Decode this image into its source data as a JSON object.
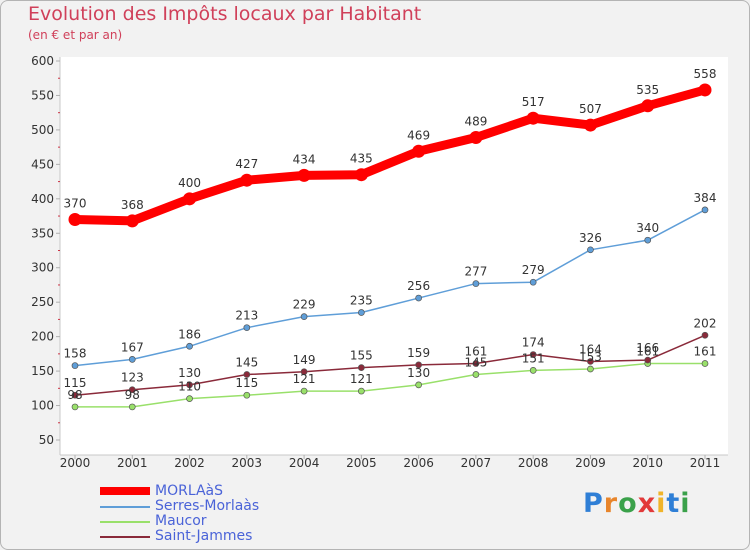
{
  "title": "Evolution des Impôts locaux par Habitant",
  "subtitle": "(en € et par an)",
  "logo": {
    "text": "Proxiti",
    "letter_colors": [
      "#2f7fd6",
      "#e8852b",
      "#3aa14a",
      "#e23a3a",
      "#f0b429",
      "#2f7fd6",
      "#3aa14a"
    ]
  },
  "chart_data": {
    "type": "line",
    "title": "Evolution des Impôts locaux par Habitant",
    "subtitle": "(en € et par an)",
    "xlabel": "",
    "ylabel": "",
    "x": [
      "2000",
      "2001",
      "2002",
      "2003",
      "2004",
      "2005",
      "2006",
      "2007",
      "2008",
      "2009",
      "2010",
      "2011"
    ],
    "ylim": [
      50,
      600
    ],
    "yticks": [
      50,
      100,
      150,
      200,
      250,
      300,
      350,
      400,
      450,
      500,
      550,
      600
    ],
    "grid": false,
    "legend_position": "bottom-left",
    "series": [
      {
        "name": "MORLAàS",
        "color": "#ff0000",
        "values": [
          370,
          368,
          400,
          427,
          434,
          435,
          469,
          489,
          517,
          507,
          535,
          558
        ]
      },
      {
        "name": "Serres-Morlaàs",
        "color": "#5f9ed8",
        "values": [
          158,
          167,
          186,
          213,
          229,
          235,
          256,
          277,
          279,
          326,
          340,
          384
        ]
      },
      {
        "name": "Maucor",
        "color": "#99e06a",
        "values": [
          98,
          98,
          110,
          115,
          121,
          121,
          130,
          145,
          151,
          153,
          161,
          161
        ]
      },
      {
        "name": "Saint-Jammes",
        "color": "#8a2a3a",
        "values": [
          115,
          123,
          130,
          145,
          149,
          155,
          159,
          161,
          174,
          164,
          166,
          202
        ]
      }
    ],
    "data_label_colors": {
      "MORLAàS": "#333333",
      "Serres-Morlaàs": "#333333",
      "Maucor": "#333333",
      "Saint-Jammes": "#333333"
    }
  }
}
